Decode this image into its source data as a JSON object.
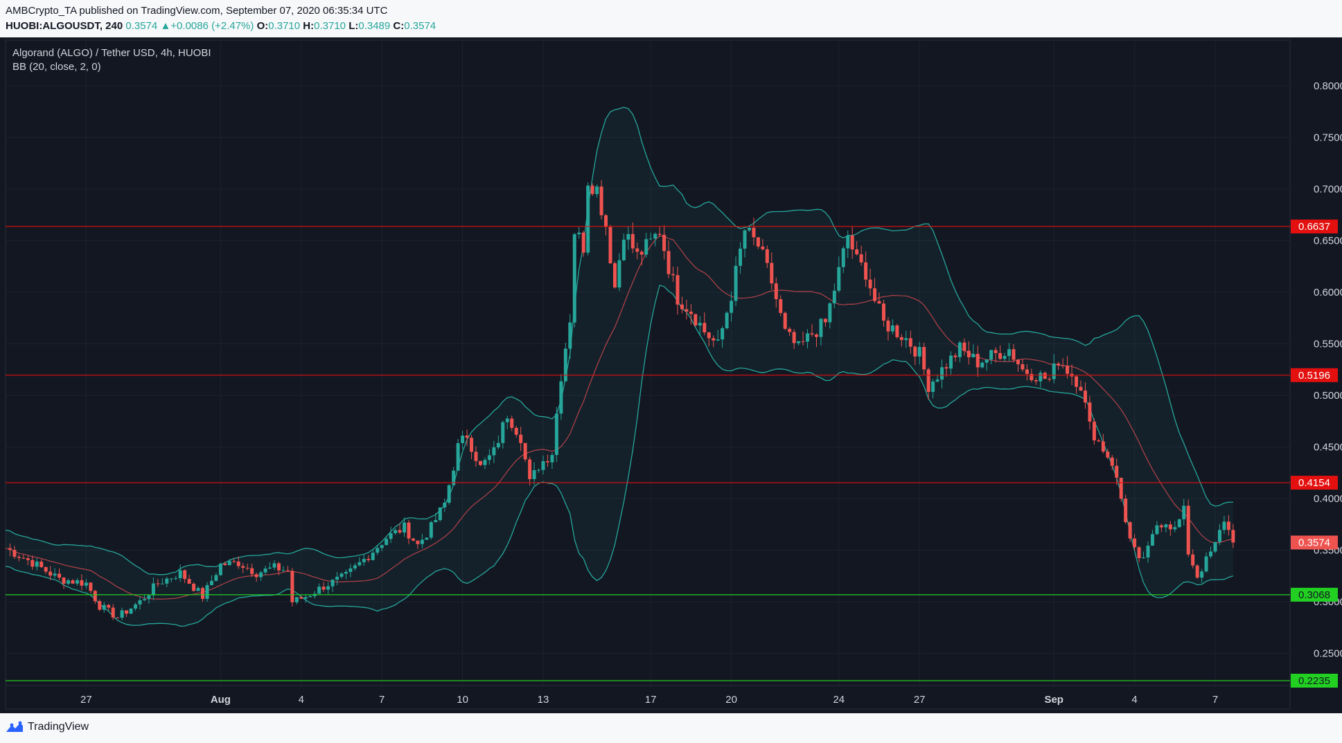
{
  "header": {
    "published_line": "AMBCrypto_TA published on TradingView.com, September 07, 2020 06:35:34 UTC",
    "symbol": "HUOBI:ALGOUSDT, 240",
    "price": "0.3574",
    "change": "+0.0086 (+2.47%)",
    "open_label": "O:",
    "open": "0.3710",
    "high_label": "H:",
    "high": "0.3710",
    "low_label": "L:",
    "low": "0.3489",
    "close_label": "C:",
    "close": "0.3574"
  },
  "legend": {
    "title": "Algorand (ALGO) / Tether USD, 4h, HUOBI",
    "indicator": "BB (20, close, 2, 0)"
  },
  "footer": {
    "brand": "TradingView"
  },
  "colors": {
    "background": "#131722",
    "up": "#26a69a",
    "down": "#ef5350",
    "bb_band": "#26a69a",
    "bb_basis": "#b5424a",
    "resistance": "#e3100f",
    "support": "#22d022",
    "grid": "#1e222d"
  },
  "chart_data": {
    "type": "candlestick",
    "title": "Algorand (ALGO) / Tether USD, 4h, HUOBI",
    "indicator": "BB (20, close, 2, 0)",
    "interval": "4h",
    "ylim": [
      0.22,
      0.83
    ],
    "y_ticks": [
      "0.8000",
      "0.7500",
      "0.7000",
      "0.6500",
      "0.6000",
      "0.5500",
      "0.5000",
      "0.4500",
      "0.4000",
      "0.3500",
      "0.3000",
      "0.2500"
    ],
    "x_ticks": [
      "27",
      "Aug",
      "4",
      "7",
      "10",
      "13",
      "17",
      "20",
      "24",
      "27",
      "Sep",
      "4",
      "7"
    ],
    "x_tick_dates": [
      "2020-07-27",
      "2020-08-01",
      "2020-08-04",
      "2020-08-07",
      "2020-08-10",
      "2020-08-13",
      "2020-08-17",
      "2020-08-20",
      "2020-08-24",
      "2020-08-27",
      "2020-09-01",
      "2020-09-04",
      "2020-09-07"
    ],
    "x_tick_bold": [
      false,
      true,
      false,
      false,
      false,
      false,
      false,
      false,
      false,
      false,
      true,
      false,
      false
    ],
    "last_price": 0.3574,
    "horizontal_levels": [
      {
        "value": 0.6637,
        "label": "0.6637",
        "kind": "resistance"
      },
      {
        "value": 0.5196,
        "label": "0.5196",
        "kind": "resistance"
      },
      {
        "value": 0.4154,
        "label": "0.4154",
        "kind": "resistance"
      },
      {
        "value": 0.3068,
        "label": "0.3068",
        "kind": "support"
      },
      {
        "value": 0.2235,
        "label": "0.2235",
        "kind": "support"
      }
    ],
    "price_anchors": [
      [
        "2020-07-24 00:00",
        0.352
      ],
      [
        "2020-07-25 00:00",
        0.338
      ],
      [
        "2020-07-26 00:00",
        0.322
      ],
      [
        "2020-07-27 00:00",
        0.318
      ],
      [
        "2020-07-27 12:00",
        0.296
      ],
      [
        "2020-07-28 04:00",
        0.285
      ],
      [
        "2020-07-29 00:00",
        0.3
      ],
      [
        "2020-07-29 16:00",
        0.318
      ],
      [
        "2020-07-30 12:00",
        0.328
      ],
      [
        "2020-07-31 08:00",
        0.305
      ],
      [
        "2020-08-01 00:00",
        0.336
      ],
      [
        "2020-08-01 16:00",
        0.338
      ],
      [
        "2020-08-02 08:00",
        0.328
      ],
      [
        "2020-08-03 00:00",
        0.333
      ],
      [
        "2020-08-03 12:00",
        0.33
      ],
      [
        "2020-08-03 16:00",
        0.3
      ],
      [
        "2020-08-04 04:00",
        0.305
      ],
      [
        "2020-08-04 20:00",
        0.315
      ],
      [
        "2020-08-05 16:00",
        0.325
      ],
      [
        "2020-08-06 12:00",
        0.345
      ],
      [
        "2020-08-07 04:00",
        0.362
      ],
      [
        "2020-08-07 20:00",
        0.372
      ],
      [
        "2020-08-08 08:00",
        0.355
      ],
      [
        "2020-08-08 20:00",
        0.372
      ],
      [
        "2020-08-09 08:00",
        0.395
      ],
      [
        "2020-08-09 20:00",
        0.45
      ],
      [
        "2020-08-10 04:00",
        0.462
      ],
      [
        "2020-08-10 16:00",
        0.43
      ],
      [
        "2020-08-11 04:00",
        0.445
      ],
      [
        "2020-08-11 16:00",
        0.482
      ],
      [
        "2020-08-12 04:00",
        0.46
      ],
      [
        "2020-08-12 12:00",
        0.415
      ],
      [
        "2020-08-12 20:00",
        0.432
      ],
      [
        "2020-08-13 08:00",
        0.445
      ],
      [
        "2020-08-13 16:00",
        0.52
      ],
      [
        "2020-08-14 00:00",
        0.575
      ],
      [
        "2020-08-14 04:00",
        0.66
      ],
      [
        "2020-08-14 12:00",
        0.645
      ],
      [
        "2020-08-14 16:00",
        0.71
      ],
      [
        "2020-08-15 00:00",
        0.7
      ],
      [
        "2020-08-15 08:00",
        0.665
      ],
      [
        "2020-08-15 16:00",
        0.605
      ],
      [
        "2020-08-16 00:00",
        0.66
      ],
      [
        "2020-08-16 12:00",
        0.635
      ],
      [
        "2020-08-17 00:00",
        0.648
      ],
      [
        "2020-08-17 08:00",
        0.66
      ],
      [
        "2020-08-17 16:00",
        0.625
      ],
      [
        "2020-08-18 00:00",
        0.595
      ],
      [
        "2020-08-18 12:00",
        0.582
      ],
      [
        "2020-08-19 00:00",
        0.562
      ],
      [
        "2020-08-19 12:00",
        0.548
      ],
      [
        "2020-08-20 00:00",
        0.598
      ],
      [
        "2020-08-20 12:00",
        0.66
      ],
      [
        "2020-08-21 00:00",
        0.645
      ],
      [
        "2020-08-21 12:00",
        0.61
      ],
      [
        "2020-08-22 00:00",
        0.56
      ],
      [
        "2020-08-22 12:00",
        0.545
      ],
      [
        "2020-08-23 00:00",
        0.56
      ],
      [
        "2020-08-23 12:00",
        0.57
      ],
      [
        "2020-08-24 00:00",
        0.62
      ],
      [
        "2020-08-24 08:00",
        0.655
      ],
      [
        "2020-08-24 16:00",
        0.63
      ],
      [
        "2020-08-25 00:00",
        0.62
      ],
      [
        "2020-08-25 08:00",
        0.592
      ],
      [
        "2020-08-25 16:00",
        0.57
      ],
      [
        "2020-08-26 00:00",
        0.565
      ],
      [
        "2020-08-26 12:00",
        0.555
      ],
      [
        "2020-08-27 00:00",
        0.54
      ],
      [
        "2020-08-27 08:00",
        0.51
      ],
      [
        "2020-08-27 20:00",
        0.525
      ],
      [
        "2020-08-28 12:00",
        0.545
      ],
      [
        "2020-08-29 04:00",
        0.532
      ],
      [
        "2020-08-29 20:00",
        0.54
      ],
      [
        "2020-08-30 08:00",
        0.545
      ],
      [
        "2020-08-30 20:00",
        0.525
      ],
      [
        "2020-08-31 08:00",
        0.52
      ],
      [
        "2020-08-31 20:00",
        0.515
      ],
      [
        "2020-09-01 04:00",
        0.535
      ],
      [
        "2020-09-01 16:00",
        0.52
      ],
      [
        "2020-09-02 00:00",
        0.51
      ],
      [
        "2020-09-02 08:00",
        0.47
      ],
      [
        "2020-09-02 16:00",
        0.455
      ],
      [
        "2020-09-03 04:00",
        0.435
      ],
      [
        "2020-09-03 12:00",
        0.4
      ],
      [
        "2020-09-03 20:00",
        0.36
      ],
      [
        "2020-09-04 04:00",
        0.338
      ],
      [
        "2020-09-04 12:00",
        0.35
      ],
      [
        "2020-09-04 20:00",
        0.375
      ],
      [
        "2020-09-05 04:00",
        0.378
      ],
      [
        "2020-09-05 12:00",
        0.37
      ],
      [
        "2020-09-05 20:00",
        0.388
      ],
      [
        "2020-09-06 00:00",
        0.348
      ],
      [
        "2020-09-06 08:00",
        0.325
      ],
      [
        "2020-09-06 16:00",
        0.34
      ],
      [
        "2020-09-07 00:00",
        0.355
      ],
      [
        "2020-09-07 08:00",
        0.38
      ],
      [
        "2020-09-07 16:00",
        0.3574
      ]
    ]
  }
}
